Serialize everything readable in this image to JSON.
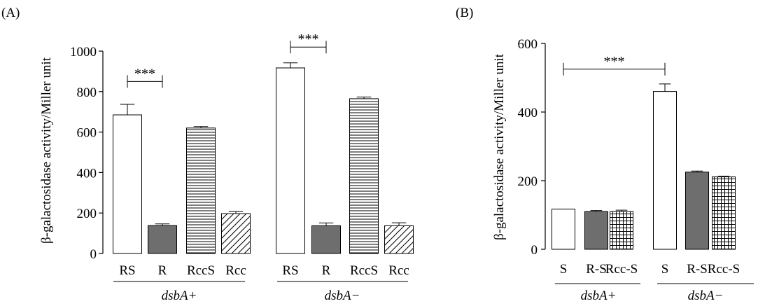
{
  "chart_data": [
    {
      "panel_label": "(A)",
      "type": "bar",
      "ylabel": "β-galactosidase activity/Miller unit",
      "ylim": [
        0,
        1000
      ],
      "yticks": [
        0,
        200,
        400,
        600,
        800,
        1000
      ],
      "groups": [
        {
          "name": "dsbA+",
          "bars": [
            {
              "category": "RS",
              "value": 685,
              "error": 52,
              "pattern": "white"
            },
            {
              "category": "R",
              "value": 138,
              "error": 8,
              "pattern": "gray"
            },
            {
              "category": "RccS",
              "value": 620,
              "error": 7,
              "pattern": "horizontal"
            },
            {
              "category": "Rcc",
              "value": 197,
              "error": 10,
              "pattern": "diagonal"
            }
          ]
        },
        {
          "name": "dsbA−",
          "bars": [
            {
              "category": "RS",
              "value": 917,
              "error": 25,
              "pattern": "white"
            },
            {
              "category": "R",
              "value": 137,
              "error": 14,
              "pattern": "gray"
            },
            {
              "category": "RccS",
              "value": 765,
              "error": 8,
              "pattern": "horizontal"
            },
            {
              "category": "Rcc",
              "value": 137,
              "error": 15,
              "pattern": "diagonal"
            }
          ]
        }
      ],
      "significance": [
        {
          "group": 0,
          "from": 0,
          "to": 1,
          "label": "***",
          "y": 850
        },
        {
          "group": 1,
          "from": 0,
          "to": 1,
          "label": "***",
          "y": 1020
        }
      ]
    },
    {
      "panel_label": "(B)",
      "type": "bar",
      "ylabel": "β-galactosidase activity/Miller unit",
      "ylim": [
        0,
        600
      ],
      "yticks": [
        0,
        200,
        400,
        600
      ],
      "groups": [
        {
          "name": "dsbA+",
          "bars": [
            {
              "category": "S",
              "value": 117,
              "error": 0,
              "pattern": "white"
            },
            {
              "category": "R-S",
              "value": 110,
              "error": 3,
              "pattern": "gray"
            },
            {
              "category": "Rcc-S",
              "value": 110,
              "error": 4,
              "pattern": "grid"
            }
          ]
        },
        {
          "name": "dsbA−",
          "bars": [
            {
              "category": "S",
              "value": 460,
              "error": 22,
              "pattern": "white"
            },
            {
              "category": "R-S",
              "value": 225,
              "error": 3,
              "pattern": "gray"
            },
            {
              "category": "Rcc-S",
              "value": 211,
              "error": 2,
              "pattern": "grid"
            }
          ]
        }
      ],
      "significance": [
        {
          "from": [
            0,
            0
          ],
          "to": [
            1,
            0
          ],
          "label": "***",
          "y": 525
        }
      ]
    }
  ]
}
